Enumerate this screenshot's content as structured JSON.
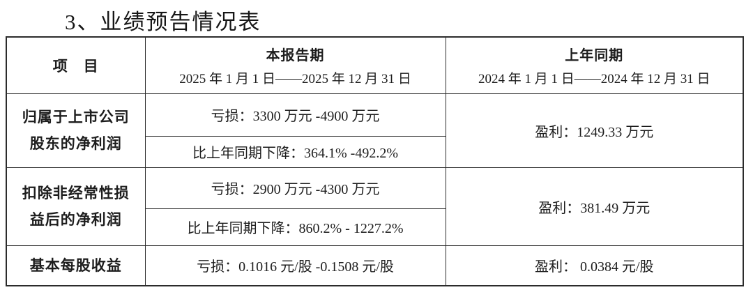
{
  "page": {
    "title": "3、业绩预告情况表"
  },
  "table": {
    "header": {
      "item_label": "项　目",
      "current_period": {
        "title": "本报告期",
        "range": "2025 年 1 月 1 日——2025 年 12 月 31 日"
      },
      "prior_period": {
        "title": "上年同期",
        "range": "2024 年 1 月 1 日——2024 年 12 月 31 日"
      }
    },
    "rows": [
      {
        "item": "归属于上市公司\n股东的净利润",
        "current_line1": "亏损：3300 万元 -4900 万元",
        "current_line2": "比上年同期下降：364.1% -492.2%",
        "prior": "盈利：1249.33 万元"
      },
      {
        "item": "扣除非经常性损\n益后的净利润",
        "current_line1": "亏损：2900 万元 -4300 万元",
        "current_line2": "比上年同期下降：860.2% - 1227.2%",
        "prior": "盈利：381.49 万元"
      },
      {
        "item": "基本每股收益",
        "current_line1": "亏损：0.1016 元/股 -0.1508 元/股",
        "prior": "盈利： 0.0384 元/股"
      }
    ]
  }
}
